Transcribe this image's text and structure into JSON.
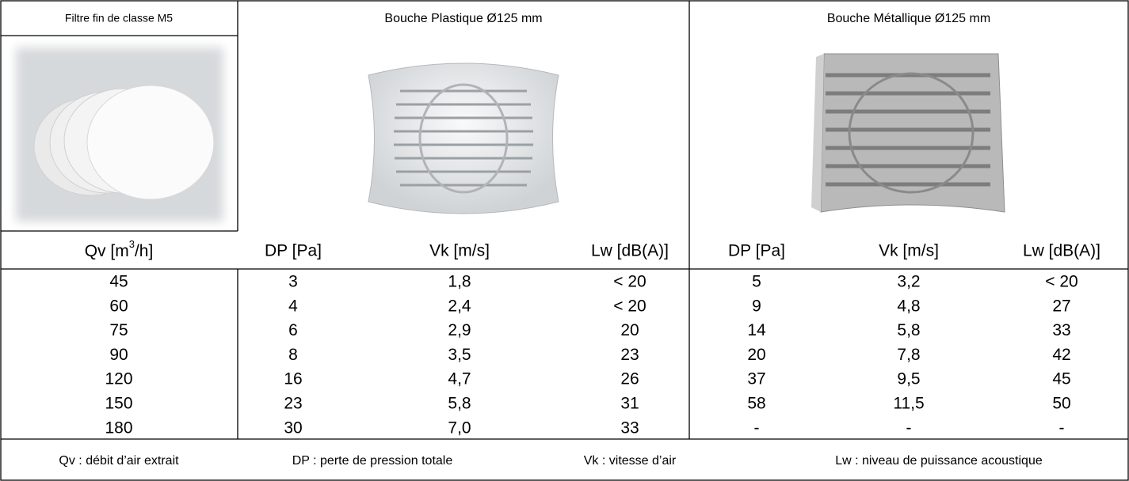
{
  "header": {
    "filter": "Filtre fin de classe M5",
    "plastic": "Bouche Plastique Ø125 mm",
    "metal": "Bouche Métallique Ø125 mm"
  },
  "table": {
    "qv_column": {
      "label": "Qv [m",
      "sup": "3",
      "label_end": "/h]"
    },
    "columns": [
      "DP [Pa]",
      "Vk [m/s]",
      "Lw [dB(A)]",
      "DP [Pa]",
      "Vk [m/s]",
      "Lw [dB(A)]"
    ],
    "rows": [
      [
        "45",
        "3",
        "1,8",
        "< 20",
        "5",
        "3,2",
        "< 20"
      ],
      [
        "60",
        "4",
        "2,4",
        "< 20",
        "9",
        "4,8",
        "27"
      ],
      [
        "75",
        "6",
        "2,9",
        "20",
        "14",
        "5,8",
        "33"
      ],
      [
        "90",
        "8",
        "3,5",
        "23",
        "20",
        "7,8",
        "42"
      ],
      [
        "120",
        "16",
        "4,7",
        "26",
        "37",
        "9,5",
        "45"
      ],
      [
        "150",
        "23",
        "5,8",
        "31",
        "58",
        "11,5",
        "50"
      ],
      [
        "180",
        "30",
        "7,0",
        "33",
        "-",
        "-",
        "-"
      ]
    ]
  },
  "legend": [
    "Qv : débit d’air extrait",
    "DP : perte de pression totale",
    "Vk : vitesse d’air",
    "Lw : niveau de puissance acoustique"
  ]
}
